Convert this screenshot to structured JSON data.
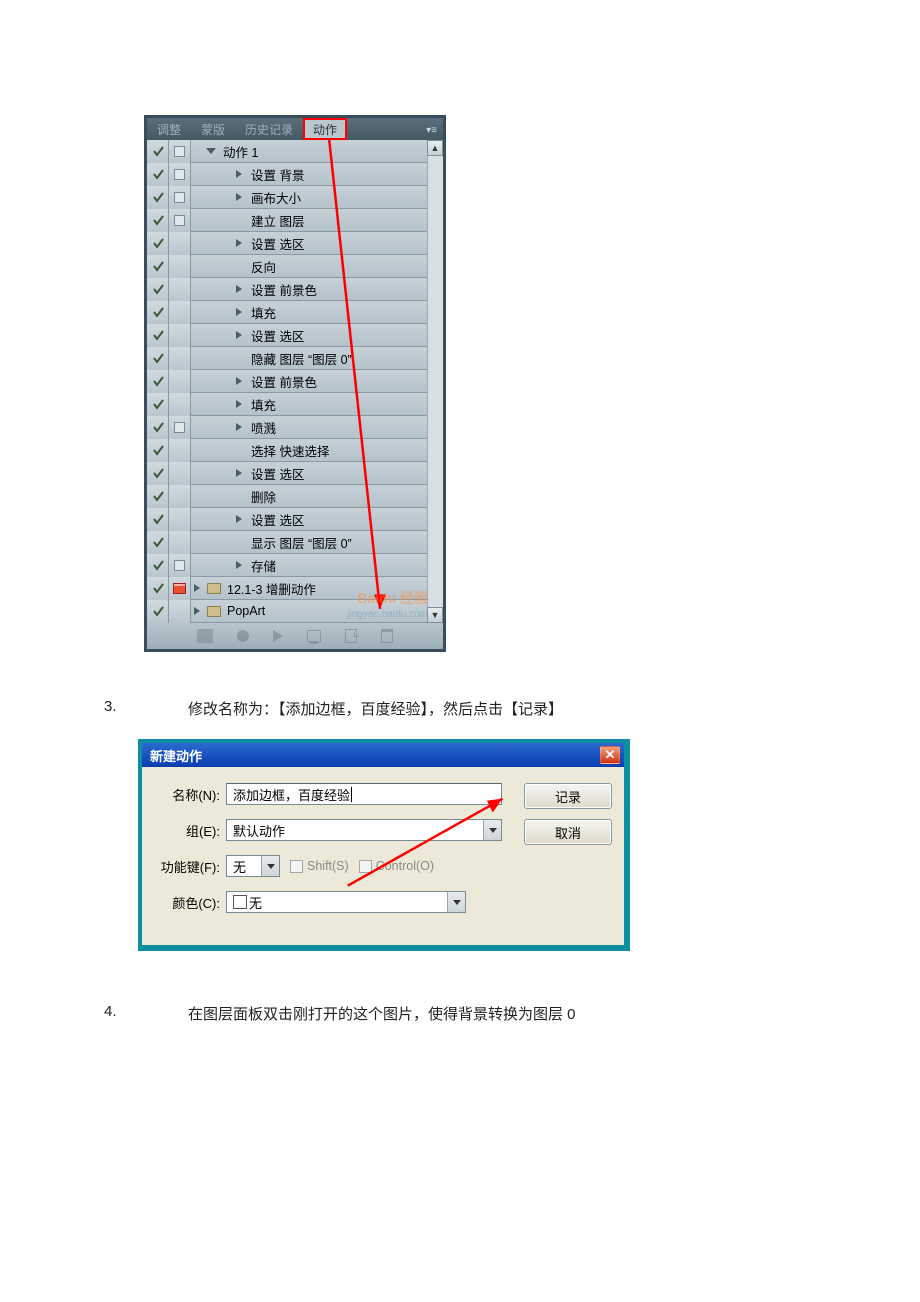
{
  "panel": {
    "tabs": [
      "调整",
      "蒙版",
      "历史记录",
      "动作"
    ],
    "active_tab_index": 3,
    "action_set_label": "动作 1",
    "steps": [
      {
        "label": "设置 背景",
        "toggle": "right",
        "check": true,
        "dlg": "sq"
      },
      {
        "label": "画布大小",
        "toggle": "right",
        "check": true,
        "dlg": "sq"
      },
      {
        "label": "建立 图层",
        "toggle": "none",
        "check": true,
        "dlg": "sq"
      },
      {
        "label": "设置 选区",
        "toggle": "right",
        "check": true,
        "dlg": "none"
      },
      {
        "label": "反向",
        "toggle": "none",
        "check": true,
        "dlg": "none"
      },
      {
        "label": "设置 前景色",
        "toggle": "right",
        "check": true,
        "dlg": "none"
      },
      {
        "label": "填充",
        "toggle": "right",
        "check": true,
        "dlg": "none"
      },
      {
        "label": "设置 选区",
        "toggle": "right",
        "check": true,
        "dlg": "none"
      },
      {
        "label": "隐藏 图层 “图层 0”",
        "toggle": "none",
        "check": true,
        "dlg": "none"
      },
      {
        "label": "设置 前景色",
        "toggle": "right",
        "check": true,
        "dlg": "none"
      },
      {
        "label": "填充",
        "toggle": "right",
        "check": true,
        "dlg": "none"
      },
      {
        "label": "喷溅",
        "toggle": "right",
        "check": true,
        "dlg": "sq"
      },
      {
        "label": "选择 快速选择",
        "toggle": "none",
        "check": true,
        "dlg": "none"
      },
      {
        "label": "设置 选区",
        "toggle": "right",
        "check": true,
        "dlg": "none"
      },
      {
        "label": "删除",
        "toggle": "none",
        "check": true,
        "dlg": "none"
      },
      {
        "label": "设置 选区",
        "toggle": "right",
        "check": true,
        "dlg": "none"
      },
      {
        "label": "显示 图层 “图层 0”",
        "toggle": "none",
        "check": true,
        "dlg": "none"
      },
      {
        "label": "存储",
        "toggle": "right",
        "check": true,
        "dlg": "sq"
      }
    ],
    "sets": [
      {
        "label": "12.1-3 增删动作",
        "check": true,
        "dlg": "red"
      },
      {
        "label": "PopArt",
        "check": true,
        "dlg": "none"
      }
    ]
  },
  "step3": {
    "num": "3.",
    "text": "修改名称为：【添加边框，百度经验】，然后点击【记录】"
  },
  "dialog": {
    "title": "新建动作",
    "name_label": "名称(N):",
    "name_value": "添加边框，百度经验",
    "group_label": "组(E):",
    "group_value": "默认动作",
    "fkey_label": "功能键(F):",
    "fkey_value": "无",
    "shift_label": "Shift(S)",
    "ctrl_label": "Control(O)",
    "color_label": "颜色(C):",
    "color_value": "无",
    "btn_record": "记录",
    "btn_cancel": "取消"
  },
  "step4": {
    "num": "4.",
    "text": "在图层面板双击刚打开的这个图片，使得背景转换为图层 0"
  },
  "watermark": {
    "brand": "Baidu 经验",
    "url": "jingyan.baidu.com"
  },
  "colors": {
    "highlight_box": "#ff0000",
    "arrow": "#ff0000"
  }
}
